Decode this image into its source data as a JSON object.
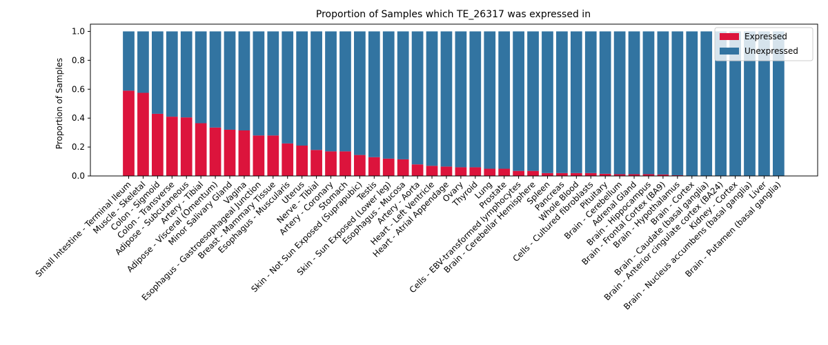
{
  "chart_data": {
    "type": "bar",
    "stacked": true,
    "title": "Proportion of Samples which TE_26317 was expressed in",
    "xlabel": "",
    "ylabel": "Proportion of Samples",
    "ylim": [
      0,
      1.05
    ],
    "yticks": [
      "0.0",
      "0.2",
      "0.4",
      "0.6",
      "0.8",
      "1.0"
    ],
    "grid": false,
    "legend_position": "top-right",
    "categories": [
      "Small Intestine - Terminal Ileum",
      "Muscle - Skeletal",
      "Colon - Sigmoid",
      "Colon - Transverse",
      "Adipose - Subcutaneous",
      "Artery - Tibial",
      "Adipose - Visceral (Omentum)",
      "Minor Salivary Gland",
      "Vagina",
      "Esophagus - Gastroesophageal Junction",
      "Breast - Mammary Tissue",
      "Esophagus - Muscularis",
      "Uterus",
      "Nerve - Tibial",
      "Artery - Coronary",
      "Stomach",
      "Skin - Not Sun Exposed (Suprapubic)",
      "Testis",
      "Skin - Sun Exposed (Lower leg)",
      "Esophagus - Mucosa",
      "Artery - Aorta",
      "Heart - Left Ventricle",
      "Heart - Atrial Appendage",
      "Ovary",
      "Thyroid",
      "Lung",
      "Prostate",
      "Cells - EBV-transformed lymphocytes",
      "Brain - Cerebellar Hemisphere",
      "Spleen",
      "Pancreas",
      "Whole Blood",
      "Cells - Cultured fibroblasts",
      "Pituitary",
      "Brain - Cerebellum",
      "Adrenal Gland",
      "Brain - Hippocampus",
      "Brain - Frontal Cortex (BA9)",
      "Brain - Hypothalamus",
      "Brain - Cortex",
      "Brain - Caudate (basal ganglia)",
      "Brain - Anterior cingulate cortex (BA24)",
      "Kidney - Cortex",
      "Brain - Nucleus accumbens (basal ganglia)",
      "Liver",
      "Brain - Putamen (basal ganglia)"
    ],
    "series": [
      {
        "name": "Expressed",
        "color": "#dc143c",
        "values": [
          0.59,
          0.575,
          0.43,
          0.41,
          0.405,
          0.365,
          0.335,
          0.32,
          0.315,
          0.28,
          0.28,
          0.225,
          0.21,
          0.18,
          0.17,
          0.17,
          0.145,
          0.13,
          0.12,
          0.115,
          0.08,
          0.07,
          0.065,
          0.06,
          0.06,
          0.05,
          0.05,
          0.035,
          0.035,
          0.02,
          0.02,
          0.02,
          0.02,
          0.015,
          0.012,
          0.012,
          0.012,
          0.01,
          0.005,
          0,
          0,
          0,
          0,
          0,
          0,
          0
        ]
      },
      {
        "name": "Unexpressed",
        "color": "#3274a1",
        "values": [
          0.41,
          0.425,
          0.57,
          0.59,
          0.595,
          0.635,
          0.665,
          0.68,
          0.685,
          0.72,
          0.72,
          0.775,
          0.79,
          0.82,
          0.83,
          0.83,
          0.855,
          0.87,
          0.88,
          0.885,
          0.92,
          0.93,
          0.935,
          0.94,
          0.94,
          0.95,
          0.95,
          0.965,
          0.965,
          0.98,
          0.98,
          0.98,
          0.98,
          0.985,
          0.988,
          0.988,
          0.988,
          0.99,
          0.995,
          1,
          1,
          1,
          1,
          1,
          1,
          1
        ]
      }
    ]
  }
}
